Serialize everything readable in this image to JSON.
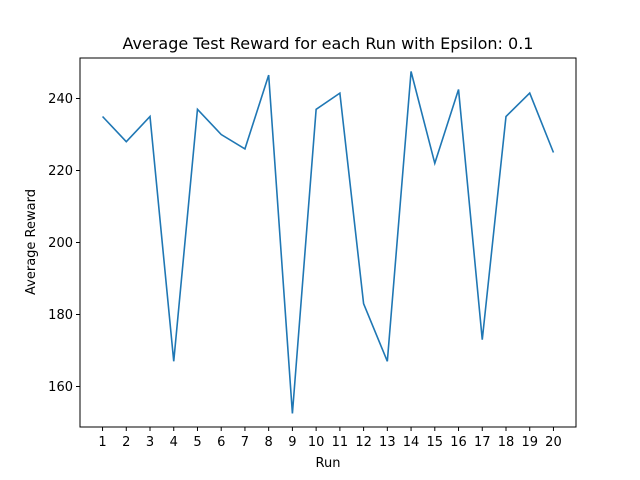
{
  "chart_data": {
    "type": "line",
    "title": "Average Test Reward for each Run with Epsilon: 0.1",
    "xlabel": "Run",
    "ylabel": "Average Reward",
    "x": [
      1,
      2,
      3,
      4,
      5,
      6,
      7,
      8,
      9,
      10,
      11,
      12,
      13,
      14,
      15,
      16,
      17,
      18,
      19,
      20
    ],
    "series": [
      {
        "values": [
          235,
          228,
          235,
          167,
          237,
          230,
          226,
          246.5,
          152.5,
          237,
          241.5,
          183,
          167,
          247.5,
          222,
          242.5,
          173,
          235,
          241.5,
          225
        ],
        "color": "#1f77b4"
      }
    ],
    "xlim": [
      0.05,
      20.95
    ],
    "ylim": [
      148.75,
      251.25
    ],
    "xticks": [
      "1",
      "2",
      "3",
      "4",
      "5",
      "6",
      "7",
      "8",
      "9",
      "10",
      "11",
      "12",
      "13",
      "14",
      "15",
      "16",
      "17",
      "18",
      "19",
      "20"
    ],
    "yticks": [
      160,
      180,
      200,
      220,
      240
    ],
    "ytick_labels": [
      "160",
      "180",
      "200",
      "220",
      "240"
    ],
    "grid": false,
    "legend": "none"
  }
}
